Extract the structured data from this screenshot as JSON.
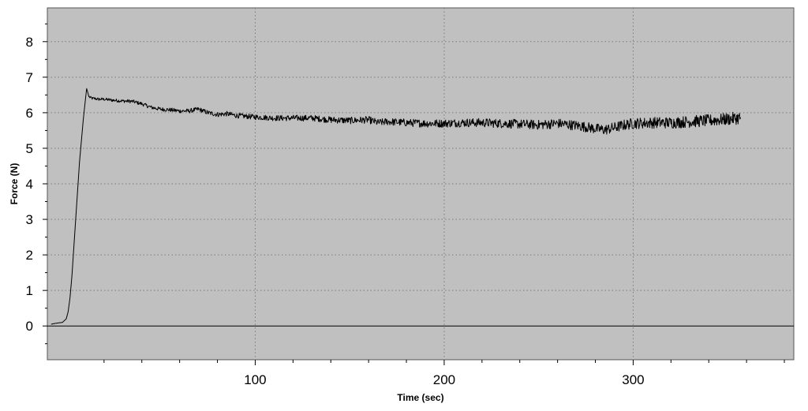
{
  "chart_data": {
    "type": "line",
    "title": "",
    "xlabel": "Time (sec)",
    "ylabel": "Force (N)",
    "xlim": [
      -10,
      385
    ],
    "ylim": [
      -0.95,
      8.95
    ],
    "x_ticks": [
      100,
      200,
      300
    ],
    "y_ticks": [
      0,
      1,
      2,
      3,
      4,
      5,
      6,
      7,
      8
    ],
    "x_tick_labels": [
      "100",
      "200",
      "300"
    ],
    "y_tick_labels": [
      "0",
      "1",
      "2",
      "3",
      "4",
      "5",
      "6",
      "7",
      "8"
    ],
    "x_minor_step": 20,
    "grid": true,
    "zero_line": true,
    "legend": "none",
    "colors": {
      "background": "#c0c0c0",
      "line": "#000000",
      "grid": "#7a7a7a"
    },
    "series": [
      {
        "x": [
          -8,
          -5,
          -2,
          0,
          1,
          2,
          3,
          4,
          5,
          6,
          7,
          8,
          9,
          10,
          10.8,
          11.5,
          12,
          13,
          14,
          15,
          17,
          20,
          25,
          30,
          35,
          40,
          45,
          50,
          55,
          60,
          65,
          70,
          75,
          80,
          85,
          90,
          95,
          100,
          110,
          120,
          130,
          140,
          150,
          160,
          165,
          170,
          180,
          190,
          200,
          210,
          220,
          230,
          240,
          250,
          260,
          270,
          275,
          280,
          285,
          290,
          295,
          300,
          310,
          320,
          330,
          340,
          350,
          357
        ],
        "y": [
          0.05,
          0.08,
          0.1,
          0.2,
          0.4,
          0.8,
          1.4,
          2.2,
          3.0,
          3.8,
          4.6,
          5.2,
          5.8,
          6.3,
          6.68,
          6.55,
          6.45,
          6.42,
          6.4,
          6.4,
          6.38,
          6.38,
          6.35,
          6.33,
          6.32,
          6.25,
          6.15,
          6.1,
          6.08,
          6.05,
          6.05,
          6.1,
          6.0,
          5.95,
          5.97,
          5.92,
          5.9,
          5.88,
          5.85,
          5.85,
          5.85,
          5.8,
          5.78,
          5.8,
          5.72,
          5.75,
          5.72,
          5.7,
          5.7,
          5.72,
          5.72,
          5.7,
          5.68,
          5.66,
          5.7,
          5.64,
          5.6,
          5.55,
          5.52,
          5.58,
          5.65,
          5.7,
          5.72,
          5.72,
          5.75,
          5.78,
          5.82,
          5.86
        ]
      }
    ]
  }
}
